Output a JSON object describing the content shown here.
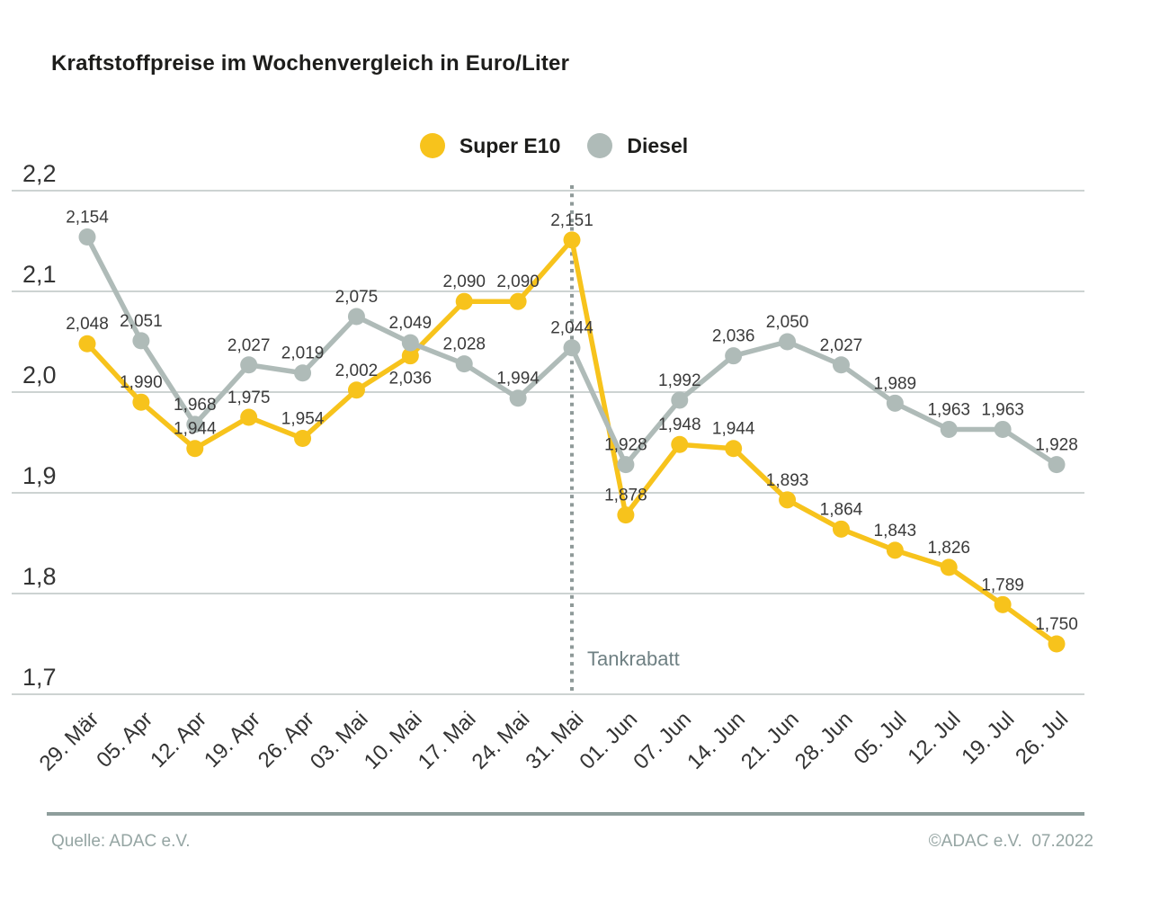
{
  "header": {
    "title": "Kraftstoffpreise im Wochenvergleich in Euro/Liter"
  },
  "legend": [
    {
      "label": "Super E10",
      "color": "#F7C31C"
    },
    {
      "label": "Diesel",
      "color": "#AFBBB8"
    }
  ],
  "footer": {
    "source": "Quelle: ADAC e.V.",
    "copyright": "©ADAC e.V.  07.2022"
  },
  "chart_data": {
    "type": "line",
    "title": "Kraftstoffpreise im Wochenvergleich in Euro/Liter",
    "unit": "Euro/Liter",
    "categories": [
      "29. Mär",
      "05. Apr",
      "12. Apr",
      "19. Apr",
      "26. Apr",
      "03. Mai",
      "10. Mai",
      "17. Mai",
      "24. Mai",
      "31. Mai",
      "01. Jun",
      "07. Jun",
      "14. Jun",
      "21. Jun",
      "28. Jun",
      "05. Jul",
      "12. Jul",
      "19. Jul",
      "26. Jul"
    ],
    "series": [
      {
        "name": "Super E10",
        "color": "#F7C31C",
        "values": [
          2.048,
          1.99,
          1.944,
          1.975,
          1.954,
          2.002,
          2.036,
          2.09,
          2.09,
          2.151,
          1.878,
          1.948,
          1.944,
          1.893,
          1.864,
          1.843,
          1.826,
          1.789,
          1.75
        ],
        "labels_below_indices": [
          6
        ]
      },
      {
        "name": "Diesel",
        "color": "#AFBBB8",
        "values": [
          2.154,
          2.051,
          1.968,
          2.027,
          2.019,
          2.075,
          2.049,
          2.028,
          1.994,
          2.044,
          1.928,
          1.992,
          2.036,
          2.05,
          2.027,
          1.989,
          1.963,
          1.963,
          1.928
        ],
        "labels_below_indices": []
      }
    ],
    "ylim": [
      1.7,
      2.2
    ],
    "yticks": [
      2.2,
      2.1,
      2.0,
      1.9,
      1.8,
      1.7
    ],
    "decimal_separator": ",",
    "grid": true,
    "legend_position": "top",
    "vline": {
      "category_index": 9,
      "label": "Tankrabatt"
    },
    "colors": {
      "grid": "#CDD3D2",
      "vline": "#8F9A99",
      "vline_label": "#6F8083",
      "axis_label": "#333333",
      "data_label": "#3a3a3a"
    }
  }
}
